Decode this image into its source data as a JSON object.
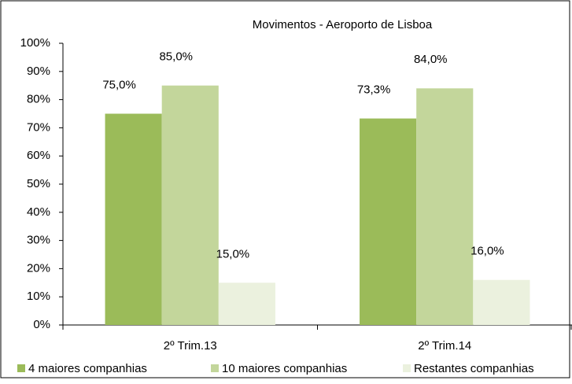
{
  "chart_data": {
    "type": "bar",
    "title": "Movimentos - Aeroporto de Lisboa",
    "categories": [
      "2º Trim.13",
      "2º Trim.14"
    ],
    "series": [
      {
        "name": "4 maiores companhias",
        "color": "#9bbb59",
        "values": [
          75.0,
          73.3
        ],
        "value_labels": [
          "75,0%",
          "73,3%"
        ]
      },
      {
        "name": "10 maiores companhias",
        "color": "#c3d69b",
        "values": [
          85.0,
          84.0
        ],
        "value_labels": [
          "85,0%",
          "84,0%"
        ]
      },
      {
        "name": "Restantes companhias",
        "color": "#ebf1de",
        "values": [
          15.0,
          16.0
        ],
        "value_labels": [
          "15,0%",
          "16,0%"
        ]
      }
    ],
    "ylim": [
      0,
      100
    ],
    "yticks": [
      {
        "value": 0,
        "label": "0%"
      },
      {
        "value": 10,
        "label": "10%"
      },
      {
        "value": 20,
        "label": "20%"
      },
      {
        "value": 30,
        "label": "30%"
      },
      {
        "value": 40,
        "label": "40%"
      },
      {
        "value": 50,
        "label": "50%"
      },
      {
        "value": 60,
        "label": "60%"
      },
      {
        "value": 70,
        "label": "70%"
      },
      {
        "value": 80,
        "label": "80%"
      },
      {
        "value": 90,
        "label": "90%"
      },
      {
        "value": 100,
        "label": "100%"
      }
    ],
    "legend": "bottom"
  }
}
